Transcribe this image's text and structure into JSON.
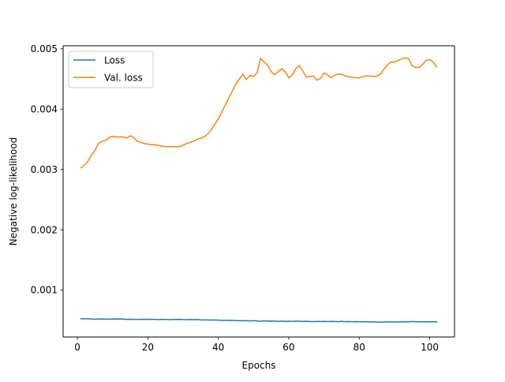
{
  "chart_data": {
    "type": "line",
    "title": "",
    "xlabel": "Epochs",
    "ylabel": "Negative log-likelihood",
    "xlim": [
      -4.05,
      107.05
    ],
    "ylim": [
      0.000225,
      0.00505
    ],
    "xticks": [
      0,
      20,
      40,
      60,
      80,
      100
    ],
    "yticks": [
      0.001,
      0.002,
      0.003,
      0.004,
      0.005
    ],
    "xtick_labels": [
      "0",
      "20",
      "40",
      "60",
      "80",
      "100"
    ],
    "ytick_labels": [
      "0.001",
      "0.002",
      "0.003",
      "0.004",
      "0.005"
    ],
    "grid": false,
    "legend_position": "upper-left",
    "series": [
      {
        "name": "Loss",
        "color": "#1f77b4",
        "x": [
          1,
          2,
          3,
          4,
          5,
          6,
          7,
          8,
          9,
          10,
          11,
          12,
          13,
          14,
          15,
          16,
          17,
          18,
          19,
          20,
          21,
          22,
          23,
          24,
          25,
          26,
          27,
          28,
          29,
          30,
          31,
          32,
          33,
          34,
          35,
          36,
          37,
          38,
          39,
          40,
          41,
          42,
          43,
          44,
          45,
          46,
          47,
          48,
          49,
          50,
          51,
          52,
          53,
          54,
          55,
          56,
          57,
          58,
          59,
          60,
          61,
          62,
          63,
          64,
          65,
          66,
          67,
          68,
          69,
          70,
          71,
          72,
          73,
          74,
          75,
          76,
          77,
          78,
          79,
          80,
          81,
          82,
          83,
          84,
          85,
          86,
          87,
          88,
          89,
          90,
          91,
          92,
          93,
          94,
          95,
          96,
          97,
          98,
          99,
          100,
          101,
          102
        ],
        "y": [
          0.000528,
          0.000528,
          0.000526,
          0.000524,
          0.00052,
          0.000522,
          0.000524,
          0.000522,
          0.00052,
          0.000524,
          0.000522,
          0.000524,
          0.000522,
          0.000518,
          0.00052,
          0.000518,
          0.000516,
          0.000518,
          0.00052,
          0.000518,
          0.00052,
          0.000516,
          0.000512,
          0.000518,
          0.000516,
          0.000512,
          0.000514,
          0.000516,
          0.000518,
          0.000514,
          0.000512,
          0.000514,
          0.000512,
          0.000514,
          0.00051,
          0.000508,
          0.000508,
          0.000506,
          0.000508,
          0.000504,
          0.000502,
          0.000502,
          0.0005,
          0.000502,
          0.000498,
          0.000494,
          0.000494,
          0.000496,
          0.000492,
          0.000496,
          0.000492,
          0.000486,
          0.000494,
          0.000488,
          0.00049,
          0.000488,
          0.000484,
          0.000488,
          0.000484,
          0.000486,
          0.000484,
          0.000488,
          0.000486,
          0.000484,
          0.000486,
          0.000482,
          0.00048,
          0.000484,
          0.000482,
          0.000484,
          0.00048,
          0.000484,
          0.000482,
          0.000478,
          0.000486,
          0.000478,
          0.000482,
          0.000478,
          0.00048,
          0.000478,
          0.000478,
          0.000476,
          0.000474,
          0.000476,
          0.000474,
          0.000472,
          0.000472,
          0.000476,
          0.000474,
          0.000476,
          0.000472,
          0.000476,
          0.000478,
          0.000476,
          0.000482,
          0.000478,
          0.000478,
          0.000476,
          0.000478,
          0.000476,
          0.000478,
          0.000476
        ]
      },
      {
        "name": "Val. loss",
        "color": "#ff7f0e",
        "x": [
          1,
          2,
          3,
          4,
          5,
          6,
          7,
          8,
          9,
          10,
          11,
          12,
          13,
          14,
          15,
          16,
          17,
          18,
          19,
          20,
          21,
          22,
          23,
          24,
          25,
          26,
          27,
          28,
          29,
          30,
          31,
          32,
          33,
          34,
          35,
          36,
          37,
          38,
          39,
          40,
          41,
          42,
          43,
          44,
          45,
          46,
          47,
          48,
          49,
          50,
          51,
          52,
          53,
          54,
          55,
          56,
          57,
          58,
          59,
          60,
          61,
          62,
          63,
          64,
          65,
          66,
          67,
          68,
          69,
          70,
          71,
          72,
          73,
          74,
          75,
          76,
          77,
          78,
          79,
          80,
          81,
          82,
          83,
          84,
          85,
          86,
          87,
          88,
          89,
          90,
          91,
          92,
          93,
          94,
          95,
          96,
          97,
          98,
          99,
          100,
          101,
          102
        ],
        "y": [
          0.00303,
          0.00307,
          0.00314,
          0.00324,
          0.00332,
          0.00343,
          0.00347,
          0.00348,
          0.00353,
          0.00355,
          0.00354,
          0.00354,
          0.00354,
          0.00352,
          0.00356,
          0.00353,
          0.00347,
          0.00345,
          0.00343,
          0.00342,
          0.00341,
          0.00341,
          0.0034,
          0.00339,
          0.00338,
          0.00338,
          0.00338,
          0.00338,
          0.00338,
          0.0034,
          0.00343,
          0.00345,
          0.00347,
          0.0035,
          0.00352,
          0.00354,
          0.00359,
          0.00366,
          0.00375,
          0.00384,
          0.00395,
          0.00407,
          0.00419,
          0.0043,
          0.00442,
          0.0045,
          0.00458,
          0.00449,
          0.00456,
          0.00454,
          0.0046,
          0.00484,
          0.00478,
          0.00473,
          0.00462,
          0.00457,
          0.00462,
          0.00467,
          0.00462,
          0.00452,
          0.00457,
          0.00467,
          0.00472,
          0.00463,
          0.00453,
          0.00454,
          0.00455,
          0.00448,
          0.00451,
          0.0046,
          0.00457,
          0.00452,
          0.00456,
          0.00458,
          0.00458,
          0.00455,
          0.00454,
          0.00453,
          0.00452,
          0.00452,
          0.00454,
          0.00455,
          0.00455,
          0.00454,
          0.00455,
          0.00458,
          0.00466,
          0.00473,
          0.00478,
          0.00478,
          0.00481,
          0.00483,
          0.00485,
          0.00484,
          0.00472,
          0.00469,
          0.00469,
          0.00474,
          0.00481,
          0.00482,
          0.00478,
          0.0047
        ]
      }
    ]
  }
}
